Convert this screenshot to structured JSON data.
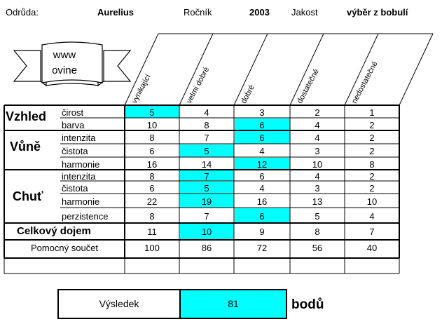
{
  "header": {
    "variety_label": "Odrůda:",
    "variety": "Aurelius",
    "year_label": "Ročník",
    "year": "2003",
    "quality_label": "Jakost",
    "quality": "výběr z bobulí"
  },
  "banner": {
    "line1": "www",
    "line2": "ovine"
  },
  "columns": [
    "vynikající",
    "velmi dobré",
    "dobré",
    "dostatečné",
    "nedostatečné"
  ],
  "highlight_color": "#00ffff",
  "rows": [
    {
      "category": "Vzhled",
      "sub": "čirost",
      "values": [
        "5",
        "4",
        "3",
        "2",
        "1"
      ],
      "selected": 0
    },
    {
      "category": "",
      "sub": "barva",
      "values": [
        "10",
        "8",
        "6",
        "4",
        "2"
      ],
      "selected": 2
    },
    {
      "category": "Vůně",
      "sub": "intenzita",
      "values": [
        "8",
        "7",
        "6",
        "4",
        "2"
      ],
      "selected": 2
    },
    {
      "category": "",
      "sub": "čistota",
      "values": [
        "6",
        "5",
        "4",
        "3",
        "2"
      ],
      "selected": 1
    },
    {
      "category": "",
      "sub": "harmonie",
      "values": [
        "16",
        "14",
        "12",
        "10",
        "8"
      ],
      "selected": 2
    },
    {
      "category": "Chuť",
      "sub": "intenzita",
      "values": [
        "8",
        "7",
        "6",
        "4",
        "2"
      ],
      "selected": 1
    },
    {
      "category": "",
      "sub": "čistota",
      "values": [
        "6",
        "5",
        "4",
        "3",
        "2"
      ],
      "selected": 1
    },
    {
      "category": "",
      "sub": "harmonie",
      "values": [
        "22",
        "19",
        "16",
        "13",
        "10"
      ],
      "selected": 1
    },
    {
      "category": "",
      "sub": "perzistence",
      "values": [
        "8",
        "7",
        "6",
        "5",
        "4"
      ],
      "selected": 2
    }
  ],
  "overall": {
    "label": "Celkový dojem",
    "values": [
      "11",
      "10",
      "9",
      "8",
      "7"
    ],
    "selected": 1
  },
  "aux": {
    "label": "Pomocný součet",
    "values": [
      "100",
      "86",
      "72",
      "56",
      "40"
    ]
  },
  "result": {
    "label": "Výsledek",
    "value": "81",
    "unit": "bodů"
  }
}
